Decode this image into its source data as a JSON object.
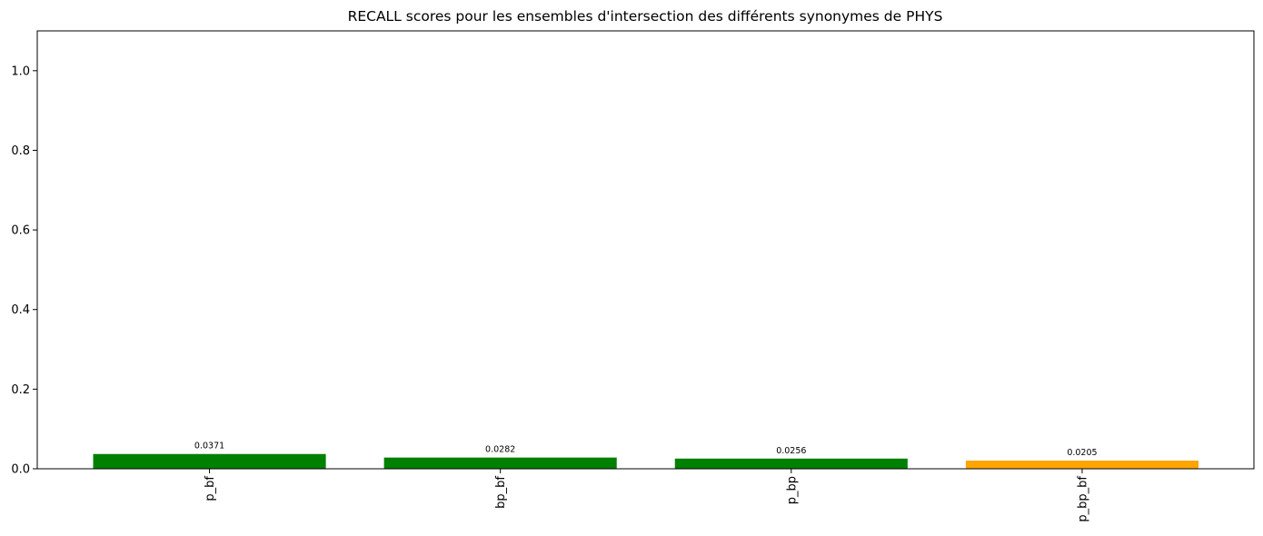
{
  "chart_data": {
    "type": "bar",
    "title": "RECALL scores pour les ensembles d'intersection des différents synonymes de PHYS",
    "xlabel": "",
    "ylabel": "",
    "categories": [
      "p_bf",
      "bp_bf",
      "p_bp",
      "p_bp_bf"
    ],
    "values": [
      0.0371,
      0.0282,
      0.0256,
      0.0205
    ],
    "value_labels": [
      "0.0371",
      "0.0282",
      "0.0256",
      "0.0205"
    ],
    "bar_colors": [
      "#008000",
      "#008000",
      "#008000",
      "#ffa500"
    ],
    "ylim": [
      0,
      1.1
    ],
    "yticks": [
      0.0,
      0.2,
      0.4,
      0.6,
      0.8,
      1.0
    ],
    "ytick_labels": [
      "0.0",
      "0.2",
      "0.4",
      "0.6",
      "0.8",
      "1.0"
    ],
    "xtick_rotation": "vertical",
    "grid": false,
    "legend": "none"
  }
}
